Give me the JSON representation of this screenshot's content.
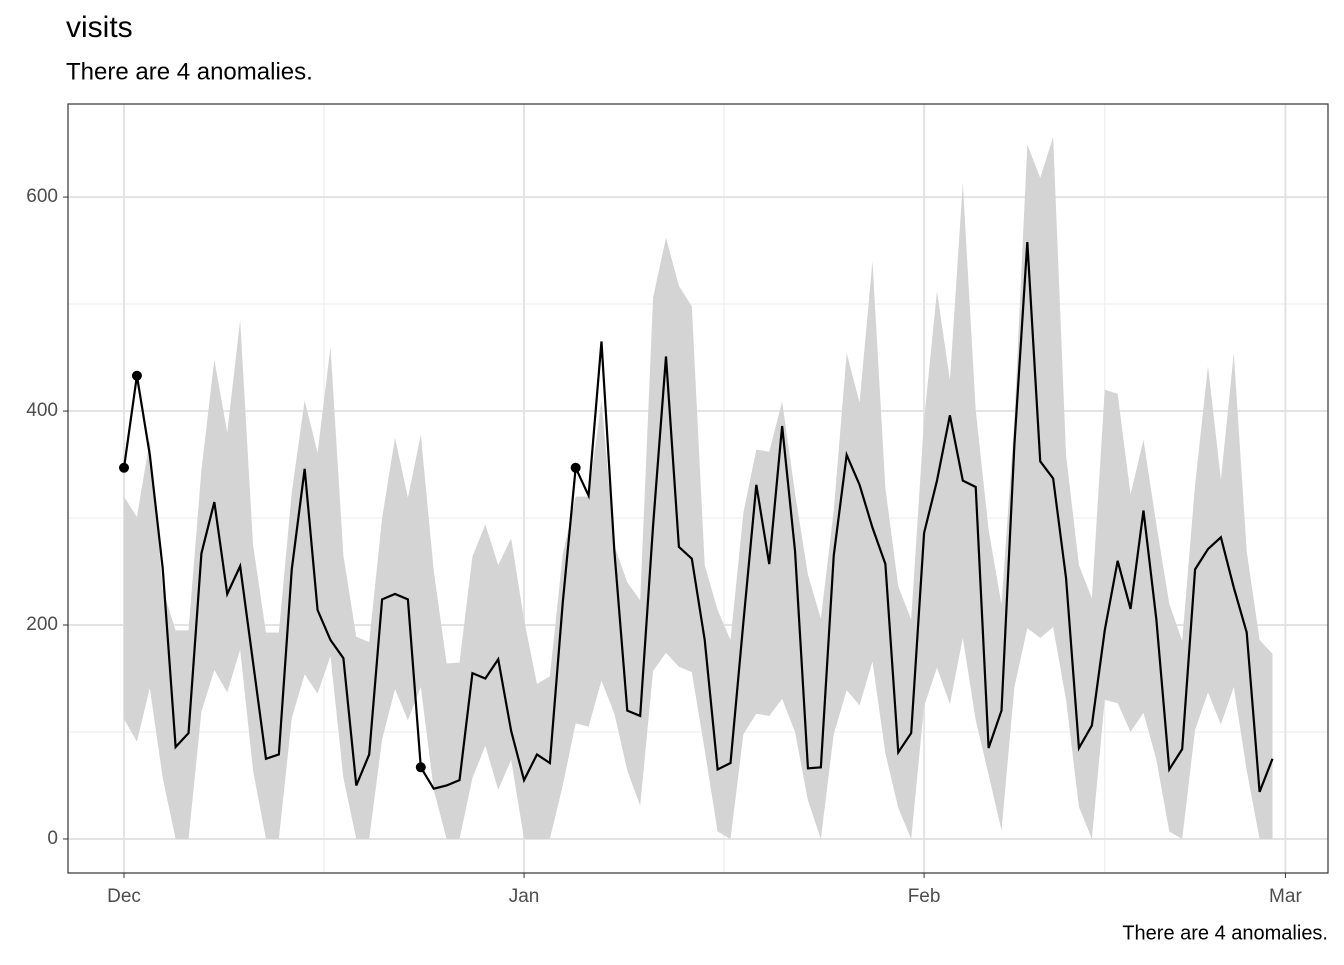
{
  "chart_data": {
    "type": "line",
    "title": "visits",
    "subtitle": "There are 4 anomalies.",
    "caption": "There are 4 anomalies.",
    "x": [
      0,
      1,
      2,
      3,
      4,
      5,
      6,
      7,
      8,
      9,
      10,
      11,
      12,
      13,
      14,
      15,
      16,
      17,
      18,
      19,
      20,
      21,
      22,
      23,
      24,
      25,
      26,
      27,
      28,
      29,
      30,
      31,
      32,
      33,
      34,
      35,
      36,
      37,
      38,
      39,
      40,
      41,
      42,
      43,
      44,
      45,
      46,
      47,
      48,
      49,
      50,
      51,
      52,
      53,
      54,
      55,
      56,
      57,
      58,
      59,
      60,
      61,
      62,
      63,
      64,
      65,
      66,
      67,
      68,
      69,
      70,
      71,
      72,
      73,
      74,
      75,
      76,
      77,
      78,
      79,
      80,
      81,
      82,
      83,
      84,
      85,
      86,
      87,
      88,
      89
    ],
    "values": [
      347,
      433,
      359,
      253,
      86,
      99,
      267,
      315,
      229,
      255,
      165,
      75,
      79,
      252,
      346,
      214,
      186,
      169,
      50,
      79,
      224,
      229,
      224,
      67,
      47,
      50,
      55,
      155,
      150,
      168,
      101,
      55,
      79,
      71,
      221,
      347,
      321,
      465,
      269,
      120,
      115,
      293,
      451,
      273,
      262,
      186,
      65,
      71,
      203,
      331,
      257,
      386,
      269,
      66,
      67,
      265,
      359,
      331,
      291,
      257,
      81,
      99,
      286,
      335,
      396,
      335,
      329,
      85,
      120,
      369,
      558,
      353,
      337,
      244,
      85,
      106,
      195,
      260,
      215,
      307,
      205,
      65,
      84,
      252,
      271,
      282,
      235,
      193,
      44,
      75
    ],
    "upper": [
      320,
      301,
      373,
      233,
      195,
      195,
      345,
      448,
      380,
      485,
      275,
      193,
      193,
      324,
      410,
      361,
      460,
      265,
      189,
      184,
      300,
      375,
      319,
      378,
      251,
      164,
      165,
      264,
      294,
      256,
      281,
      205,
      145,
      152,
      266,
      320,
      320,
      410,
      274,
      240,
      223,
      506,
      562,
      517,
      498,
      256,
      214,
      186,
      305,
      364,
      362,
      409,
      323,
      247,
      206,
      307,
      454,
      408,
      540,
      328,
      236,
      205,
      392,
      512,
      429,
      613,
      401,
      289,
      219,
      392,
      649,
      618,
      656,
      359,
      256,
      225,
      420,
      416,
      322,
      373,
      294,
      220,
      185,
      331,
      442,
      336,
      454,
      269,
      186,
      173
    ],
    "lower": [
      112,
      91,
      141,
      57,
      0,
      0,
      119,
      158,
      137,
      177,
      64,
      0,
      0,
      113,
      154,
      136,
      171,
      57,
      0,
      0,
      93,
      140,
      111,
      142,
      46,
      0,
      0,
      57,
      87,
      46,
      74,
      0,
      0,
      0,
      50,
      108,
      105,
      148,
      117,
      64,
      31,
      157,
      174,
      161,
      156,
      83,
      7,
      0,
      98,
      117,
      115,
      131,
      100,
      36,
      0,
      98,
      139,
      125,
      166,
      80,
      29,
      0,
      124,
      160,
      126,
      188,
      111,
      60,
      8,
      142,
      197,
      188,
      198,
      130,
      30,
      0,
      130,
      127,
      100,
      118,
      74,
      7,
      0,
      102,
      137,
      107,
      142,
      64,
      0,
      0
    ],
    "anomalies": {
      "x": [
        0,
        1,
        23,
        35
      ],
      "values": [
        347,
        433,
        67,
        347
      ]
    },
    "color": "#000000",
    "band_color": "#d4d4d4",
    "xlim": [
      -4.34,
      93.3
    ],
    "ylim": [
      -31.8,
      687
    ],
    "xticks": [
      {
        "value": 0,
        "label": "Dec"
      },
      {
        "value": 31,
        "label": "Jan"
      },
      {
        "value": 62,
        "label": "Feb"
      },
      {
        "value": 90,
        "label": "Mar"
      }
    ],
    "yticks": [
      0,
      200,
      400,
      600
    ],
    "x_minor": [
      15.5,
      46.5,
      76
    ],
    "y_minor": [
      100,
      300,
      500
    ],
    "grid": true
  }
}
